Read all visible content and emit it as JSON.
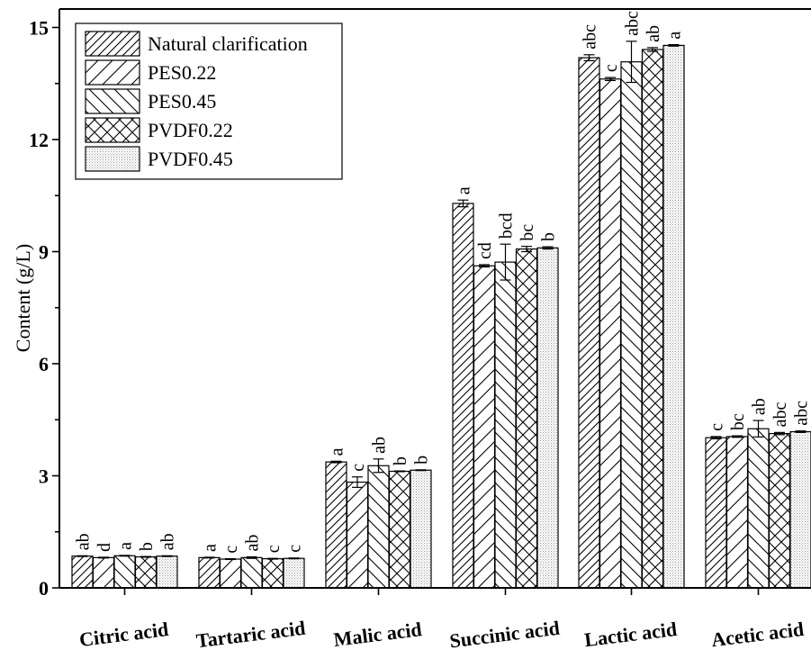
{
  "chart_data": {
    "type": "bar",
    "ylabel": "Content (g/L)",
    "xlabel": "",
    "ylim": [
      0,
      15.5
    ],
    "yticks": [
      0,
      3,
      6,
      9,
      12,
      15
    ],
    "grid": false,
    "legend_position": "top-left",
    "categories": [
      "Citric acid",
      "Tartaric acid",
      "Malic acid",
      "Succinic acid",
      "Lactic acid",
      "Acetic acid"
    ],
    "series": [
      {
        "name": "Natural clarification",
        "pattern": "hatch-back",
        "values": [
          0.85,
          0.81,
          3.37,
          10.29,
          14.19,
          4.02
        ],
        "errors": [
          0.01,
          0.01,
          0.02,
          0.09,
          0.08,
          0.03
        ],
        "letters": [
          "ab",
          "a",
          "a",
          "a",
          "abc",
          "c"
        ]
      },
      {
        "name": "PES0.22",
        "pattern": "hatch-back-wide",
        "values": [
          0.81,
          0.77,
          2.83,
          8.62,
          13.62,
          4.05
        ],
        "errors": [
          0.01,
          0.01,
          0.14,
          0.03,
          0.04,
          0.02
        ],
        "letters": [
          "d",
          "c",
          "c",
          "cd",
          "c",
          "bc"
        ]
      },
      {
        "name": "PES0.45",
        "pattern": "hatch-forward",
        "values": [
          0.86,
          0.81,
          3.27,
          8.72,
          14.08,
          4.26
        ],
        "errors": [
          0.01,
          0.02,
          0.18,
          0.48,
          0.55,
          0.22
        ],
        "letters": [
          "a",
          "ab",
          "ab",
          "bcd",
          "abc",
          "ab"
        ]
      },
      {
        "name": "PVDF0.22",
        "pattern": "cross-hatch",
        "values": [
          0.83,
          0.78,
          3.12,
          9.07,
          14.41,
          4.13
        ],
        "errors": [
          0.01,
          0.01,
          0.01,
          0.07,
          0.05,
          0.03
        ],
        "letters": [
          "b",
          "c",
          "b",
          "bc",
          "ab",
          "abc"
        ]
      },
      {
        "name": "PVDF0.45",
        "pattern": "dots",
        "values": [
          0.85,
          0.79,
          3.15,
          9.1,
          14.52,
          4.18
        ],
        "errors": [
          0.01,
          0.01,
          0.01,
          0.03,
          0.02,
          0.02
        ],
        "letters": [
          "ab",
          "c",
          "b",
          "b",
          "a",
          "abc"
        ]
      }
    ]
  }
}
